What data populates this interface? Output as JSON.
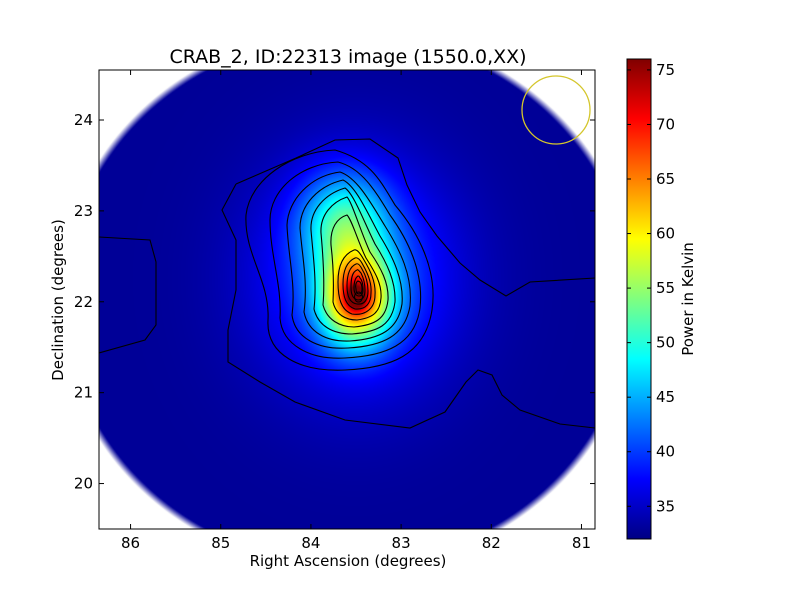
{
  "chart_data": {
    "type": "heatmap",
    "title": "CRAB_2, ID:22313 image (1550.0,XX)",
    "xlabel": "Right Ascension (degrees)",
    "ylabel": "Declination (degrees)",
    "colorbar_label": "Power in Kelvin",
    "colormap": "jet",
    "xlim": [
      86.35,
      80.85
    ],
    "ylim": [
      19.5,
      24.55
    ],
    "x_ticks": [
      86,
      85,
      84,
      83,
      82,
      81
    ],
    "y_ticks": [
      20,
      21,
      22,
      23,
      24
    ],
    "colorbar_range": [
      32,
      76
    ],
    "colorbar_ticks": [
      35,
      40,
      45,
      50,
      55,
      60,
      65,
      70,
      75
    ],
    "grid": false,
    "peak": {
      "ra": 83.5,
      "dec": 22.05,
      "value": 76
    },
    "background_value": 33,
    "contour_levels": [
      36,
      40,
      44,
      48,
      52,
      56,
      60,
      64,
      68,
      72
    ],
    "beam_marker": {
      "ra": 81.35,
      "dec": 24.1,
      "color": "#d4c62c"
    }
  }
}
